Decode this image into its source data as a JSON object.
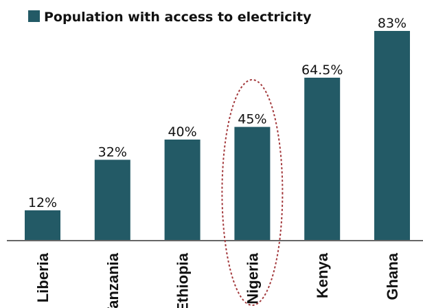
{
  "colors": {
    "bar": "#235a66",
    "axis": "#666666",
    "highlight": "#a3393c",
    "text": "#111111"
  },
  "chart_data": {
    "type": "bar",
    "categories": [
      "Liberia",
      "Tanzania",
      "Ethiopia",
      "Nigeria",
      "Kenya",
      "Ghana"
    ],
    "series": [
      {
        "name": "Population with access to electricity",
        "values": [
          12,
          32,
          40,
          45,
          64.5,
          83
        ]
      }
    ],
    "data_labels": [
      "12%",
      "32%",
      "40%",
      "45%",
      "64.5%",
      "83%"
    ],
    "ylim": [
      0,
      85
    ],
    "grid": false,
    "legend_position": "top",
    "highlighted_category": "Nigeria"
  }
}
